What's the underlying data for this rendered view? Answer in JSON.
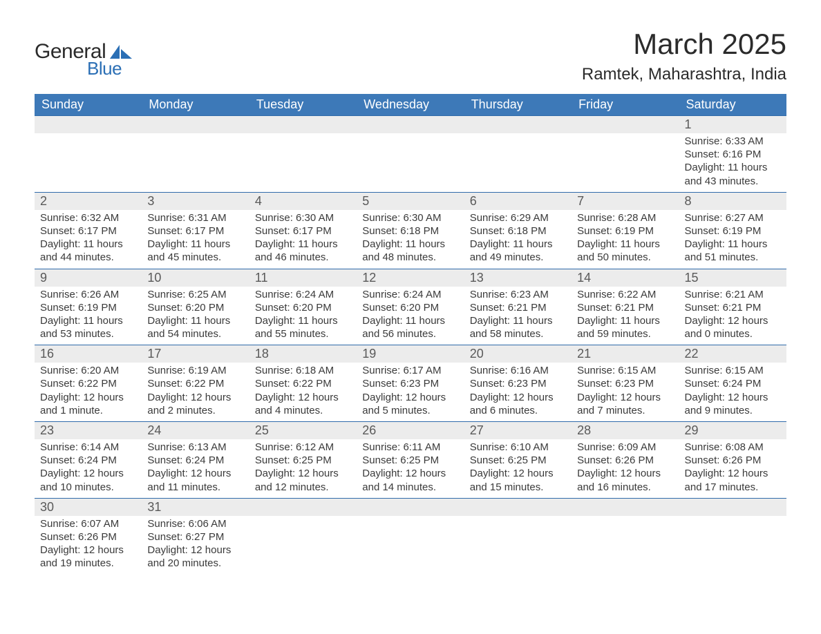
{
  "brand": {
    "word1": "General",
    "word2": "Blue",
    "sail_color": "#2b6fb5"
  },
  "title": "March 2025",
  "location": "Ramtek, Maharashtra, India",
  "colors": {
    "header_bg": "#3d79b8",
    "header_text": "#ffffff",
    "daybar_bg": "#ececec",
    "daybar_border": "#2f6aaa",
    "text": "#2f2f2f"
  },
  "weekday_labels": [
    "Sunday",
    "Monday",
    "Tuesday",
    "Wednesday",
    "Thursday",
    "Friday",
    "Saturday"
  ],
  "weeks": [
    [
      null,
      null,
      null,
      null,
      null,
      null,
      {
        "d": "1",
        "sr": "6:33 AM",
        "ss": "6:16 PM",
        "dl": "Daylight: 11 hours and 43 minutes."
      }
    ],
    [
      {
        "d": "2",
        "sr": "6:32 AM",
        "ss": "6:17 PM",
        "dl": "Daylight: 11 hours and 44 minutes."
      },
      {
        "d": "3",
        "sr": "6:31 AM",
        "ss": "6:17 PM",
        "dl": "Daylight: 11 hours and 45 minutes."
      },
      {
        "d": "4",
        "sr": "6:30 AM",
        "ss": "6:17 PM",
        "dl": "Daylight: 11 hours and 46 minutes."
      },
      {
        "d": "5",
        "sr": "6:30 AM",
        "ss": "6:18 PM",
        "dl": "Daylight: 11 hours and 48 minutes."
      },
      {
        "d": "6",
        "sr": "6:29 AM",
        "ss": "6:18 PM",
        "dl": "Daylight: 11 hours and 49 minutes."
      },
      {
        "d": "7",
        "sr": "6:28 AM",
        "ss": "6:19 PM",
        "dl": "Daylight: 11 hours and 50 minutes."
      },
      {
        "d": "8",
        "sr": "6:27 AM",
        "ss": "6:19 PM",
        "dl": "Daylight: 11 hours and 51 minutes."
      }
    ],
    [
      {
        "d": "9",
        "sr": "6:26 AM",
        "ss": "6:19 PM",
        "dl": "Daylight: 11 hours and 53 minutes."
      },
      {
        "d": "10",
        "sr": "6:25 AM",
        "ss": "6:20 PM",
        "dl": "Daylight: 11 hours and 54 minutes."
      },
      {
        "d": "11",
        "sr": "6:24 AM",
        "ss": "6:20 PM",
        "dl": "Daylight: 11 hours and 55 minutes."
      },
      {
        "d": "12",
        "sr": "6:24 AM",
        "ss": "6:20 PM",
        "dl": "Daylight: 11 hours and 56 minutes."
      },
      {
        "d": "13",
        "sr": "6:23 AM",
        "ss": "6:21 PM",
        "dl": "Daylight: 11 hours and 58 minutes."
      },
      {
        "d": "14",
        "sr": "6:22 AM",
        "ss": "6:21 PM",
        "dl": "Daylight: 11 hours and 59 minutes."
      },
      {
        "d": "15",
        "sr": "6:21 AM",
        "ss": "6:21 PM",
        "dl": "Daylight: 12 hours and 0 minutes."
      }
    ],
    [
      {
        "d": "16",
        "sr": "6:20 AM",
        "ss": "6:22 PM",
        "dl": "Daylight: 12 hours and 1 minute."
      },
      {
        "d": "17",
        "sr": "6:19 AM",
        "ss": "6:22 PM",
        "dl": "Daylight: 12 hours and 2 minutes."
      },
      {
        "d": "18",
        "sr": "6:18 AM",
        "ss": "6:22 PM",
        "dl": "Daylight: 12 hours and 4 minutes."
      },
      {
        "d": "19",
        "sr": "6:17 AM",
        "ss": "6:23 PM",
        "dl": "Daylight: 12 hours and 5 minutes."
      },
      {
        "d": "20",
        "sr": "6:16 AM",
        "ss": "6:23 PM",
        "dl": "Daylight: 12 hours and 6 minutes."
      },
      {
        "d": "21",
        "sr": "6:15 AM",
        "ss": "6:23 PM",
        "dl": "Daylight: 12 hours and 7 minutes."
      },
      {
        "d": "22",
        "sr": "6:15 AM",
        "ss": "6:24 PM",
        "dl": "Daylight: 12 hours and 9 minutes."
      }
    ],
    [
      {
        "d": "23",
        "sr": "6:14 AM",
        "ss": "6:24 PM",
        "dl": "Daylight: 12 hours and 10 minutes."
      },
      {
        "d": "24",
        "sr": "6:13 AM",
        "ss": "6:24 PM",
        "dl": "Daylight: 12 hours and 11 minutes."
      },
      {
        "d": "25",
        "sr": "6:12 AM",
        "ss": "6:25 PM",
        "dl": "Daylight: 12 hours and 12 minutes."
      },
      {
        "d": "26",
        "sr": "6:11 AM",
        "ss": "6:25 PM",
        "dl": "Daylight: 12 hours and 14 minutes."
      },
      {
        "d": "27",
        "sr": "6:10 AM",
        "ss": "6:25 PM",
        "dl": "Daylight: 12 hours and 15 minutes."
      },
      {
        "d": "28",
        "sr": "6:09 AM",
        "ss": "6:26 PM",
        "dl": "Daylight: 12 hours and 16 minutes."
      },
      {
        "d": "29",
        "sr": "6:08 AM",
        "ss": "6:26 PM",
        "dl": "Daylight: 12 hours and 17 minutes."
      }
    ],
    [
      {
        "d": "30",
        "sr": "6:07 AM",
        "ss": "6:26 PM",
        "dl": "Daylight: 12 hours and 19 minutes."
      },
      {
        "d": "31",
        "sr": "6:06 AM",
        "ss": "6:27 PM",
        "dl": "Daylight: 12 hours and 20 minutes."
      },
      null,
      null,
      null,
      null,
      null
    ]
  ],
  "labels": {
    "sunrise_prefix": "Sunrise: ",
    "sunset_prefix": "Sunset: "
  }
}
